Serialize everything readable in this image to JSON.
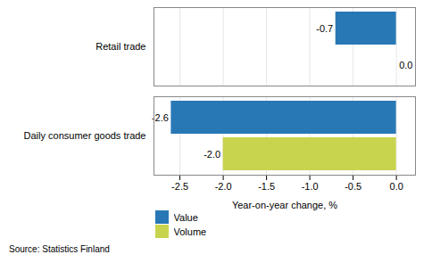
{
  "chart_data": {
    "type": "bar",
    "orientation": "horizontal",
    "categories": [
      "Daily consumer goods trade",
      "Retail trade"
    ],
    "series": [
      {
        "name": "Value",
        "color": "#2878B5",
        "values": [
          -2.6,
          -0.7
        ]
      },
      {
        "name": "Volume",
        "color": "#C8D44E",
        "values": [
          -2.0,
          0.0
        ],
        "value_labels": [
          "-2.0",
          "0.0"
        ]
      }
    ],
    "xlabel": "Year-on-year change, %",
    "xlim": [
      -2.8,
      0.22
    ],
    "xticks": [
      -2.5,
      {
        "value": -2.0,
        "label": "-2.0"
      },
      -1.5,
      {
        "value": -1.0,
        "label": "-1.0"
      },
      -0.5,
      {
        "value": 0.0,
        "label": "0.0"
      }
    ],
    "grid": true,
    "data_labels": true,
    "legend": "bottom",
    "caption": "Source: Statistics Finland"
  }
}
